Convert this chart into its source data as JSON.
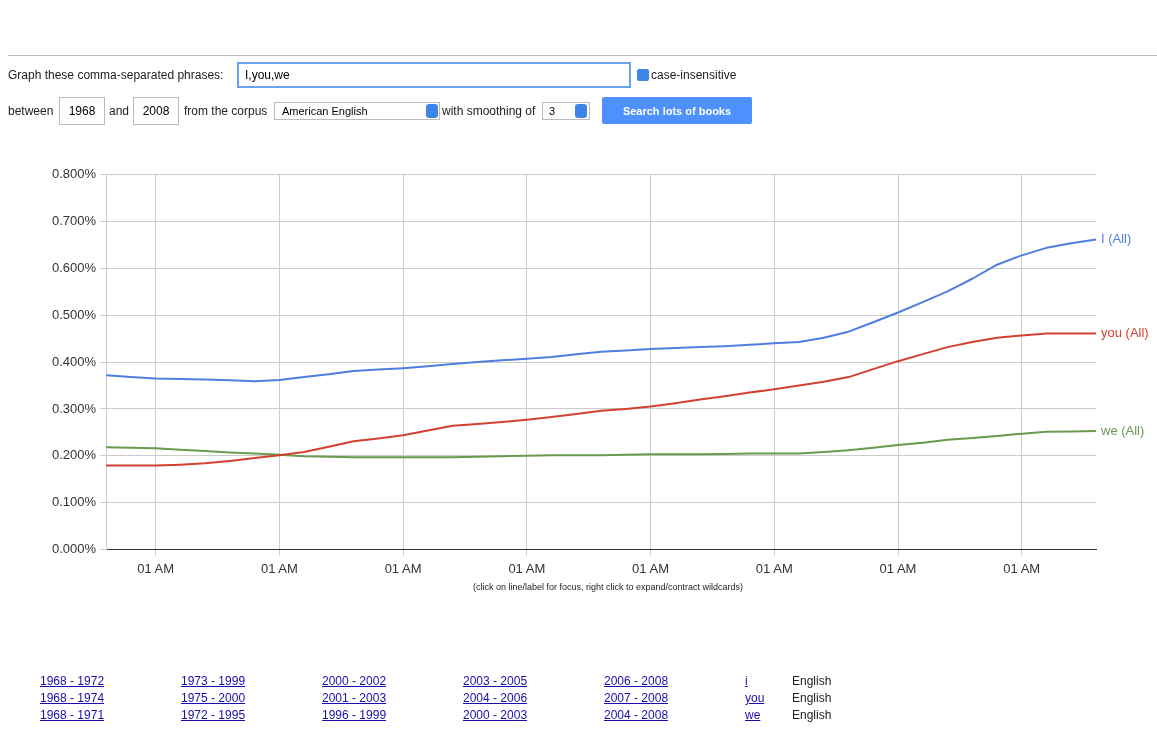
{
  "chart_data": {
    "type": "line",
    "categories": [
      null,
      null,
      "01 AM",
      null,
      null,
      null,
      null,
      "01 AM",
      null,
      null,
      null,
      null,
      "01 AM",
      null,
      null,
      null,
      null,
      "01 AM",
      null,
      null,
      null,
      null,
      "01 AM",
      null,
      null,
      null,
      null,
      "01 AM",
      null,
      null,
      null,
      null,
      "01 AM",
      null,
      null,
      null,
      null,
      "01 AM",
      null,
      null,
      null
    ],
    "series": [
      {
        "name": "I (All)",
        "color": "#4d7fe0",
        "values": [
          0.372,
          0.368,
          0.365,
          0.364,
          0.363,
          0.361,
          0.359,
          0.362,
          0.368,
          0.374,
          0.381,
          0.384,
          0.387,
          0.391,
          0.396,
          0.4,
          0.404,
          0.407,
          0.411,
          0.417,
          0.422,
          0.425,
          0.428,
          0.43,
          0.432,
          0.434,
          0.437,
          0.44,
          0.443,
          0.452,
          0.465,
          0.485,
          0.506,
          0.528,
          0.551,
          0.578,
          0.608,
          0.628,
          0.644,
          0.654,
          0.662
        ]
      },
      {
        "name": "you (All)",
        "color": "#d4402f",
        "values": [
          0.179,
          0.179,
          0.179,
          0.181,
          0.184,
          0.189,
          0.195,
          0.201,
          0.208,
          0.219,
          0.231,
          0.237,
          0.244,
          0.254,
          0.264,
          0.268,
          0.272,
          0.277,
          0.283,
          0.289,
          0.296,
          0.3,
          0.305,
          0.312,
          0.32,
          0.327,
          0.335,
          0.342,
          0.35,
          0.358,
          0.368,
          0.385,
          0.402,
          0.417,
          0.432,
          0.443,
          0.452,
          0.457,
          0.461,
          0.461,
          0.461
        ]
      },
      {
        "name": "we (All)",
        "color": "#6a9a4f",
        "values": [
          0.218,
          0.217,
          0.216,
          0.213,
          0.21,
          0.207,
          0.205,
          0.202,
          0.199,
          0.198,
          0.197,
          0.197,
          0.197,
          0.197,
          0.197,
          0.198,
          0.199,
          0.2,
          0.201,
          0.201,
          0.201,
          0.202,
          0.203,
          0.203,
          0.203,
          0.204,
          0.205,
          0.205,
          0.205,
          0.208,
          0.212,
          0.217,
          0.223,
          0.228,
          0.234,
          0.238,
          0.242,
          0.247,
          0.251,
          0.252,
          0.253
        ]
      }
    ],
    "ylim": [
      0,
      0.8
    ],
    "yticks": [
      {
        "value": 0,
        "label": "0.000%"
      },
      {
        "value": 0.1,
        "label": "0.100%"
      },
      {
        "value": 0.2,
        "label": "0.200%"
      },
      {
        "value": 0.3,
        "label": "0.300%"
      },
      {
        "value": 0.4,
        "label": "0.400%"
      },
      {
        "value": 0.5,
        "label": "0.500%"
      },
      {
        "value": 0.6,
        "label": "0.600%"
      },
      {
        "value": 0.7,
        "label": "0.700%"
      },
      {
        "value": 0.8,
        "label": "0.800%"
      }
    ],
    "grid": true,
    "legend": false,
    "annotations": [
      "Graph these comma-separated phrases:",
      "I,you,we",
      "case-insensitive",
      "between",
      "1968",
      "and",
      "2008",
      "from the corpus",
      "American English",
      "with smoothing of",
      "3",
      "Search lots of books",
      "(click on line/label for focus, right click to expand/contract wildcards)",
      "1968 - 1972",
      "1973 - 1999",
      "2000 - 2002",
      "2003 - 2005",
      "2006 - 2008",
      "i",
      "English",
      "1968 - 1974",
      "1975 - 2000",
      "2001 - 2003",
      "2004 - 2006",
      "2007 - 2008",
      "you",
      "English",
      "1968 - 1971",
      "1972 - 1995",
      "1996 - 1999",
      "2000 - 2003",
      "2004 - 2008",
      "we",
      "English"
    ]
  }
}
